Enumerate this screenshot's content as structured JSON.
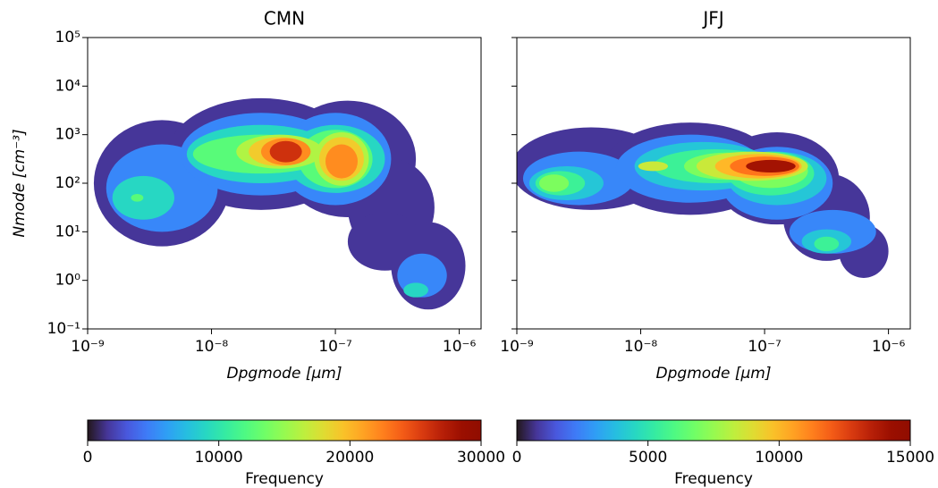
{
  "chart_data": [
    {
      "type": "contour",
      "title": "CMN",
      "xlabel": "Dpgmode [μm]",
      "ylabel": "Nmode [cm⁻³]",
      "xscale": "log",
      "yscale": "log",
      "xlim": [
        1e-09,
        1.5e-06
      ],
      "ylim": [
        0.1,
        100000
      ],
      "xticks": [
        {
          "value": 1e-09,
          "label": "10⁻⁹"
        },
        {
          "value": 1e-08,
          "label": "10⁻⁸"
        },
        {
          "value": 1e-07,
          "label": "10⁻⁷"
        },
        {
          "value": 1e-06,
          "label": "10⁻⁶"
        }
      ],
      "yticks": [
        {
          "value": 0.1,
          "label": "10⁻¹"
        },
        {
          "value": 1,
          "label": "10⁰"
        },
        {
          "value": 10,
          "label": "10¹"
        },
        {
          "value": 100,
          "label": "10²"
        },
        {
          "value": 1000,
          "label": "10³"
        },
        {
          "value": 10000,
          "label": "10⁴"
        },
        {
          "value": 100000,
          "label": "10⁵"
        }
      ],
      "levels": [
        1500,
        5000,
        9000,
        12500,
        16000,
        19000,
        22000,
        26000
      ],
      "colormap": "turbo",
      "colorbar": {
        "label": "Frequency",
        "lim": [
          0,
          30000
        ],
        "ticks": [
          0,
          10000,
          20000,
          30000
        ]
      }
    },
    {
      "type": "contour",
      "title": "JFJ",
      "xlabel": "Dpgmode [μm]",
      "xscale": "log",
      "yscale": "log",
      "sharey": true,
      "xlim": [
        1e-09,
        1.5e-06
      ],
      "ylim": [
        0.1,
        100000
      ],
      "xticks": [
        {
          "value": 1e-09,
          "label": "10⁻⁹"
        },
        {
          "value": 1e-08,
          "label": "10⁻⁸"
        },
        {
          "value": 1e-07,
          "label": "10⁻⁷"
        },
        {
          "value": 1e-06,
          "label": "10⁻⁶"
        }
      ],
      "levels": [
        750,
        2500,
        4000,
        5500,
        7000,
        8500,
        10000,
        11500,
        14000
      ],
      "colormap": "turbo",
      "colorbar": {
        "label": "Frequency",
        "lim": [
          0,
          15000
        ],
        "ticks": [
          0,
          5000,
          10000,
          15000
        ]
      }
    }
  ]
}
